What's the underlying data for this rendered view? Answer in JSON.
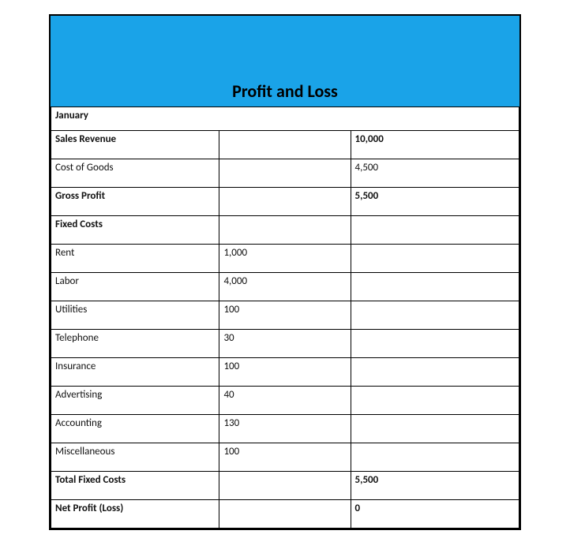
{
  "title": "Profit and Loss",
  "period": "January",
  "colors": {
    "header_bg": "#1aa3e8",
    "border": "#000000",
    "page_bg": "#ffffff",
    "text": "#111111"
  },
  "rows": [
    {
      "label": "Sales Revenue",
      "col2": "",
      "col3": "10,000",
      "bold": true
    },
    {
      "label": "Cost of Goods",
      "col2": "",
      "col3": "4,500",
      "bold": false
    },
    {
      "label": "Gross Profit",
      "col2": "",
      "col3": "5,500",
      "bold": true
    },
    {
      "label": "Fixed Costs",
      "col2": "",
      "col3": "",
      "bold": true
    },
    {
      "label": "Rent",
      "col2": "1,000",
      "col3": "",
      "bold": false
    },
    {
      "label": "Labor",
      "col2": "4,000",
      "col3": "",
      "bold": false
    },
    {
      "label": "Utilities",
      "col2": "100",
      "col3": "",
      "bold": false
    },
    {
      "label": "Telephone",
      "col2": "30",
      "col3": "",
      "bold": false
    },
    {
      "label": "Insurance",
      "col2": "100",
      "col3": "",
      "bold": false
    },
    {
      "label": "Advertising",
      "col2": "40",
      "col3": "",
      "bold": false
    },
    {
      "label": "Accounting",
      "col2": "130",
      "col3": "",
      "bold": false
    },
    {
      "label": "Miscellaneous",
      "col2": "100",
      "col3": "",
      "bold": false
    },
    {
      "label": "Total Fixed Costs",
      "col2": "",
      "col3": "5,500",
      "bold": true
    },
    {
      "label": "Net Profit (Loss)",
      "col2": "",
      "col3": "0",
      "bold": true
    }
  ]
}
